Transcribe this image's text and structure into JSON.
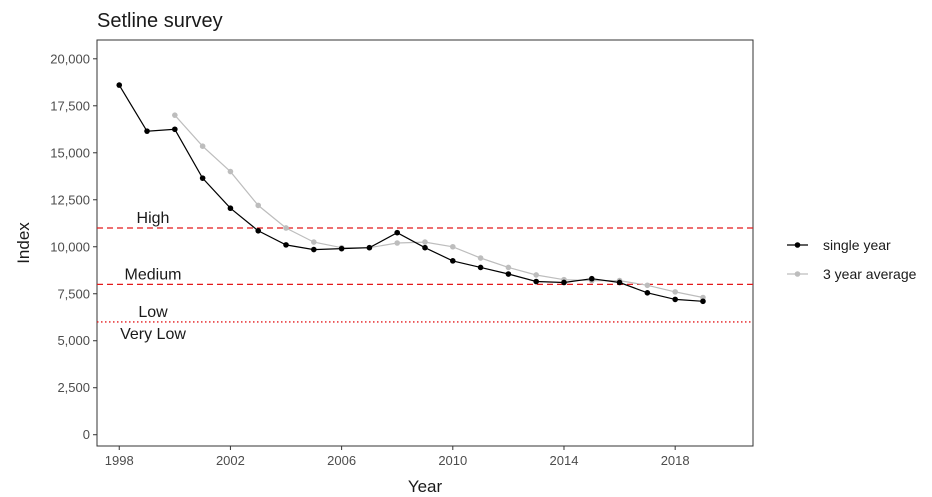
{
  "chart_data": {
    "type": "line",
    "title": "Setline survey",
    "xlabel": "Year",
    "ylabel": "Index",
    "xlim": [
      1997.2,
      2020.8
    ],
    "ylim": [
      -600,
      21000
    ],
    "x_ticks": [
      1998,
      2002,
      2006,
      2010,
      2014,
      2018
    ],
    "y_ticks": [
      0,
      2500,
      5000,
      7500,
      10000,
      12500,
      15000,
      17500,
      20000
    ],
    "y_tick_labels": [
      "0",
      "2,500",
      "5,000",
      "7,500",
      "10,000",
      "12,500",
      "15,000",
      "17,500",
      "20,000"
    ],
    "grid": false,
    "legend_position": "right",
    "series": [
      {
        "name": "single year",
        "color": "#000000",
        "x": [
          1998,
          1999,
          2000,
          2001,
          2002,
          2003,
          2004,
          2005,
          2006,
          2007,
          2008,
          2009,
          2010,
          2011,
          2012,
          2013,
          2014,
          2015,
          2016,
          2017,
          2018,
          2019
        ],
        "values": [
          18600,
          16150,
          16250,
          13650,
          12050,
          10850,
          10100,
          9850,
          9900,
          9950,
          10750,
          9950,
          9250,
          8900,
          8550,
          8150,
          8100,
          8300,
          8100,
          7550,
          7200,
          7100
        ]
      },
      {
        "name": "3 year average",
        "color": "#bdbdbd",
        "x": [
          2000,
          2001,
          2002,
          2003,
          2004,
          2005,
          2006,
          2007,
          2008,
          2009,
          2010,
          2011,
          2012,
          2013,
          2014,
          2015,
          2016,
          2017,
          2018,
          2019
        ],
        "values": [
          17000,
          15350,
          14000,
          12200,
          11000,
          10250,
          9950,
          9950,
          10200,
          10250,
          10000,
          9400,
          8900,
          8500,
          8250,
          8200,
          8200,
          7950,
          7600,
          7300
        ]
      }
    ],
    "reference_lines": [
      {
        "y": 11000,
        "label": "High",
        "color": "#e41a1c",
        "style": "dashed"
      },
      {
        "y": 8000,
        "label": "Medium",
        "color": "#e41a1c",
        "style": "dashed"
      },
      {
        "y": 6000,
        "label": "Low",
        "label_below": "Very Low",
        "color": "#e41a1c",
        "style": "dotted"
      }
    ]
  }
}
